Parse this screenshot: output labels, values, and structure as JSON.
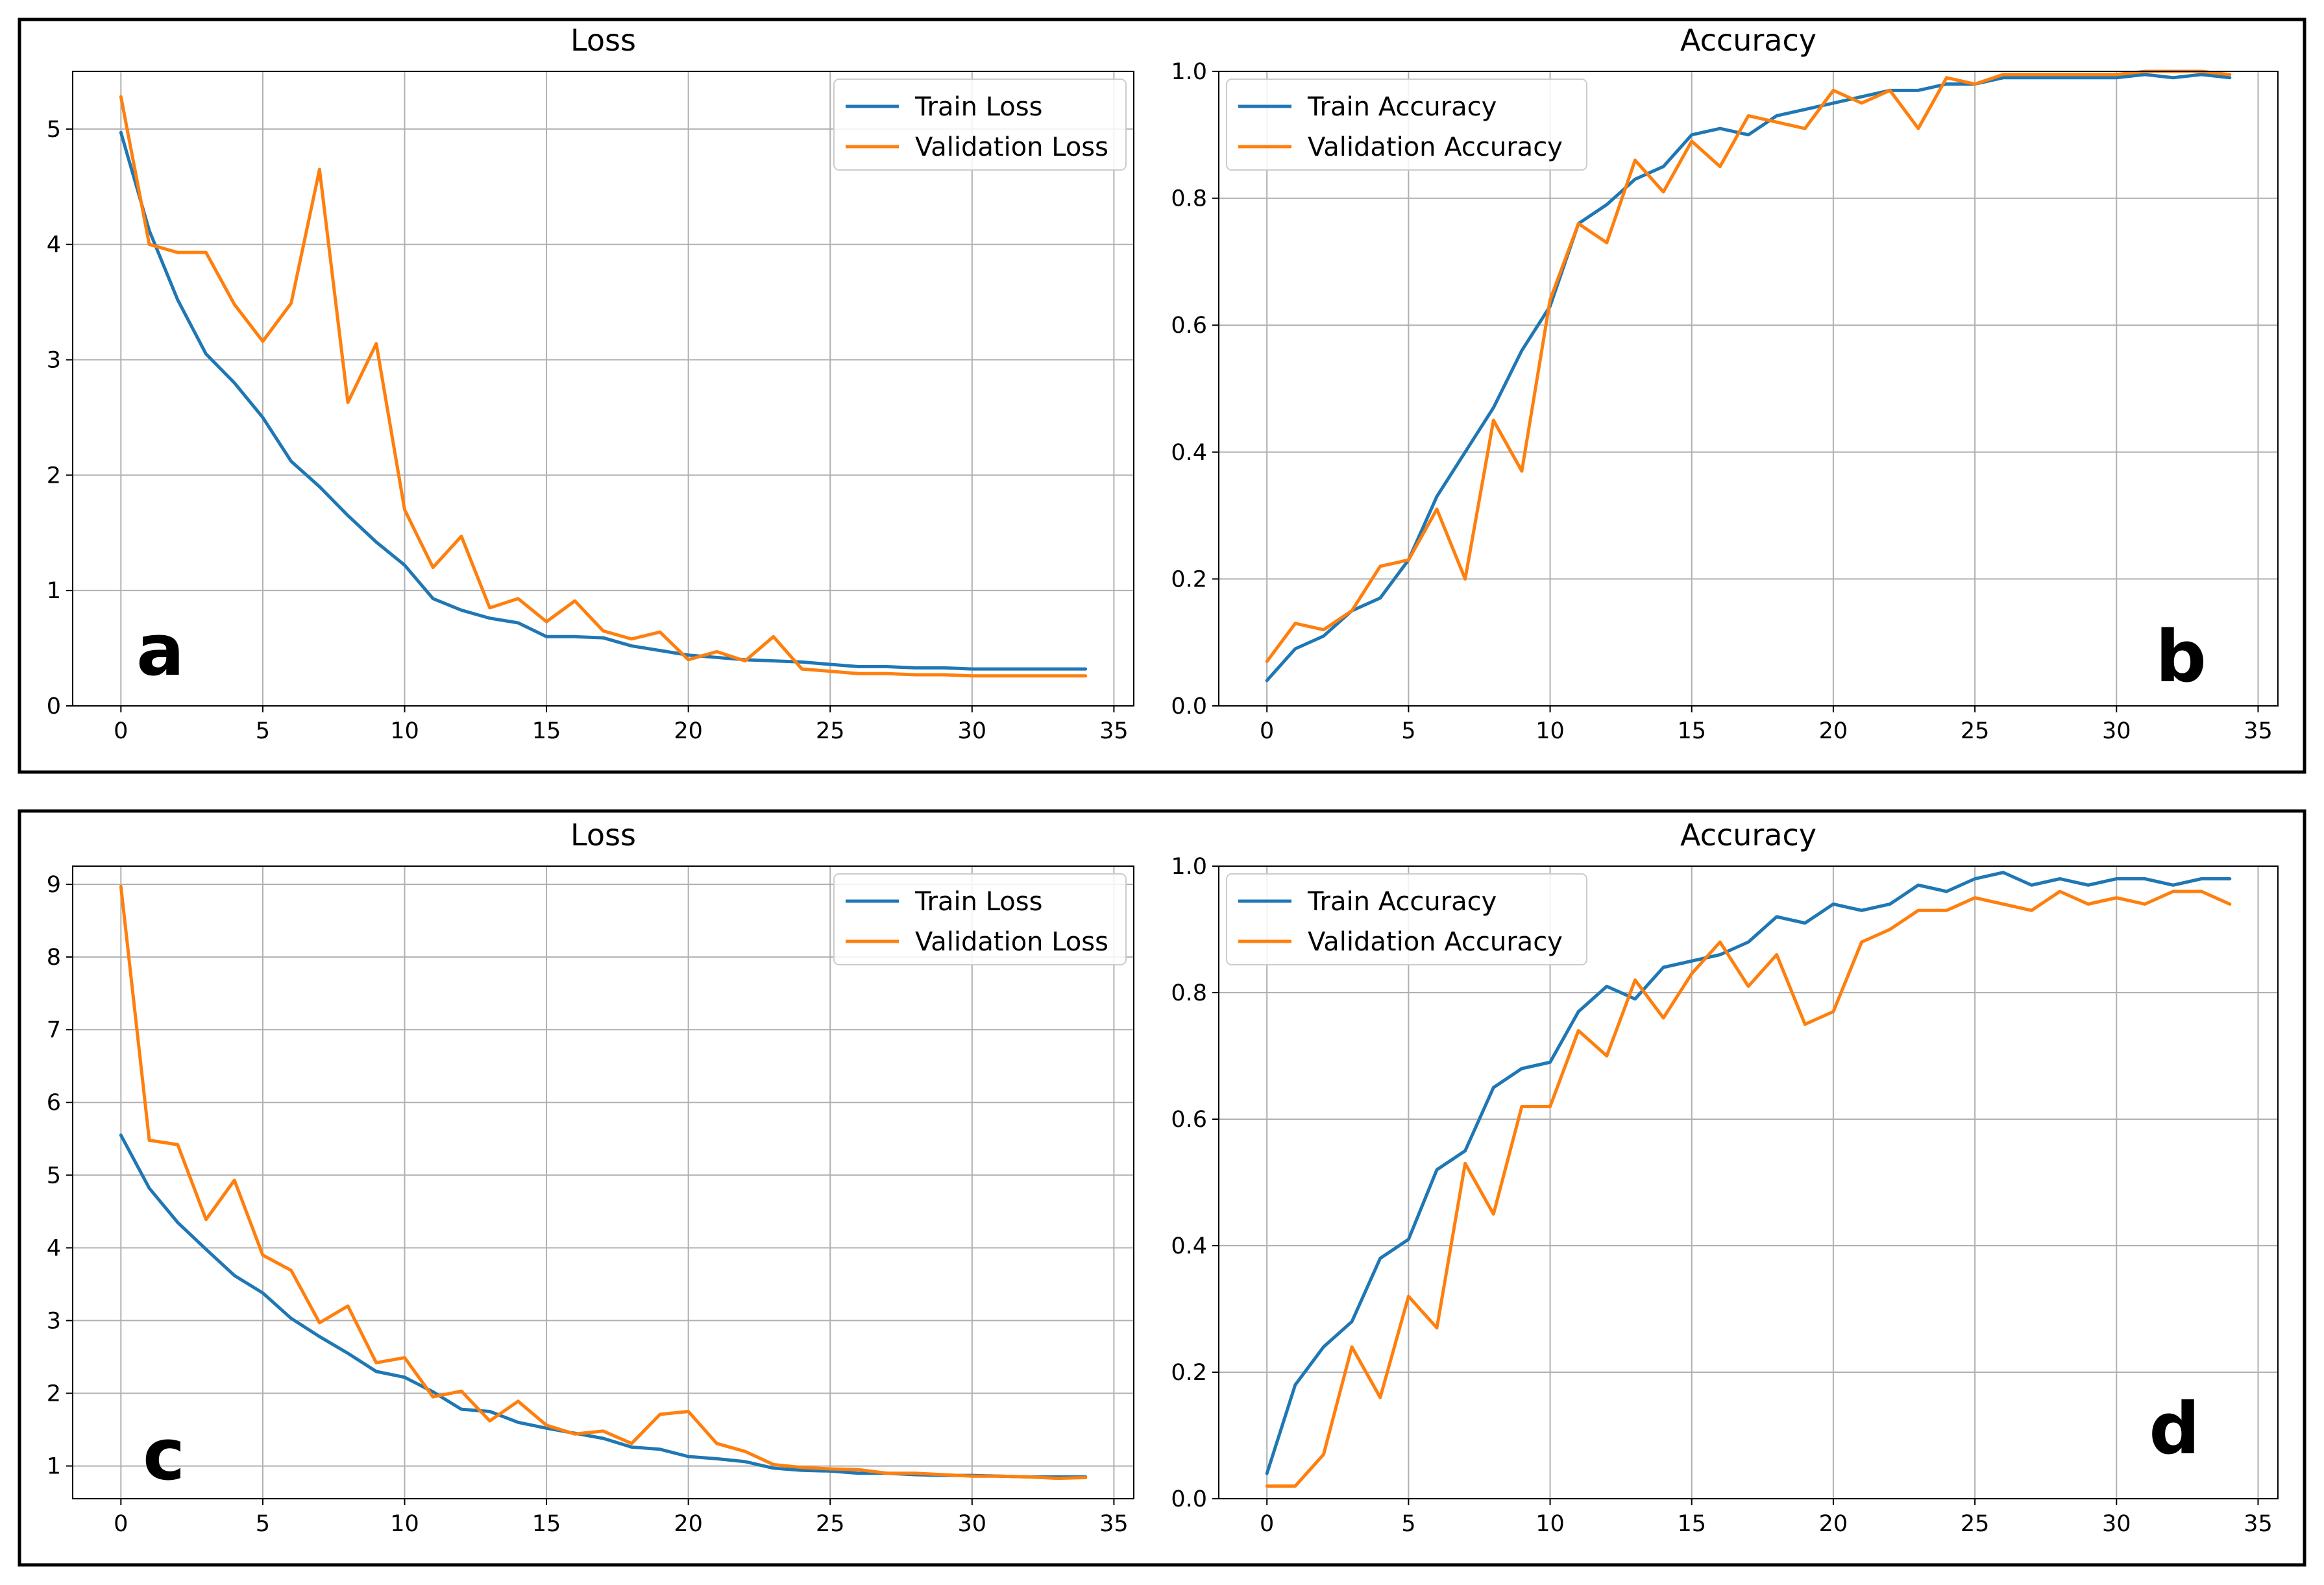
{
  "colors": {
    "train": "#1f77b4",
    "validation": "#ff7f0e",
    "grid": "#b0b0b0"
  },
  "chart_data": [
    {
      "id": "a",
      "type": "line",
      "title": "Loss",
      "panel_label": "a",
      "xlabel": "",
      "ylabel": "",
      "xlim": [
        -1.7,
        35.7
      ],
      "ylim": [
        0,
        5.5
      ],
      "xticks": [
        0,
        5,
        10,
        15,
        20,
        25,
        30,
        35
      ],
      "yticks": [
        0,
        1,
        2,
        3,
        4,
        5
      ],
      "ytick_labels": [
        "0",
        "1",
        "2",
        "3",
        "4",
        "5"
      ],
      "grid": true,
      "legend_position": "top-right",
      "x": [
        0,
        1,
        2,
        3,
        4,
        5,
        6,
        7,
        8,
        9,
        10,
        11,
        12,
        13,
        14,
        15,
        16,
        17,
        18,
        19,
        20,
        21,
        22,
        23,
        24,
        25,
        26,
        27,
        28,
        29,
        30,
        31,
        32,
        33,
        34
      ],
      "series": [
        {
          "name": "Train Loss",
          "color": "#1f77b4",
          "values": [
            4.97,
            4.12,
            3.52,
            3.05,
            2.8,
            2.5,
            2.12,
            1.9,
            1.65,
            1.42,
            1.22,
            0.93,
            0.83,
            0.76,
            0.72,
            0.6,
            0.6,
            0.59,
            0.52,
            0.48,
            0.44,
            0.42,
            0.4,
            0.39,
            0.38,
            0.36,
            0.34,
            0.34,
            0.33,
            0.33,
            0.32,
            0.32,
            0.32,
            0.32,
            0.32
          ]
        },
        {
          "name": "Validation Loss",
          "color": "#ff7f0e",
          "values": [
            5.28,
            4.0,
            3.93,
            3.93,
            3.48,
            3.16,
            3.49,
            4.65,
            2.63,
            3.14,
            1.7,
            1.2,
            1.47,
            0.85,
            0.93,
            0.73,
            0.91,
            0.65,
            0.58,
            0.64,
            0.4,
            0.47,
            0.39,
            0.6,
            0.32,
            0.3,
            0.28,
            0.28,
            0.27,
            0.27,
            0.26,
            0.26,
            0.26,
            0.26,
            0.26
          ]
        }
      ]
    },
    {
      "id": "b",
      "type": "line",
      "title": "Accuracy",
      "panel_label": "b",
      "xlabel": "",
      "ylabel": "",
      "xlim": [
        -1.7,
        35.7
      ],
      "ylim": [
        0,
        1.0
      ],
      "xticks": [
        0,
        5,
        10,
        15,
        20,
        25,
        30,
        35
      ],
      "yticks": [
        0,
        0.2,
        0.4,
        0.6,
        0.8,
        1.0
      ],
      "ytick_labels": [
        "0.0",
        "0.2",
        "0.4",
        "0.6",
        "0.8",
        "1.0"
      ],
      "grid": true,
      "legend_position": "top-left",
      "x": [
        0,
        1,
        2,
        3,
        4,
        5,
        6,
        7,
        8,
        9,
        10,
        11,
        12,
        13,
        14,
        15,
        16,
        17,
        18,
        19,
        20,
        21,
        22,
        23,
        24,
        25,
        26,
        27,
        28,
        29,
        30,
        31,
        32,
        33,
        34
      ],
      "series": [
        {
          "name": "Train Accuracy",
          "color": "#1f77b4",
          "values": [
            0.04,
            0.09,
            0.11,
            0.15,
            0.17,
            0.23,
            0.33,
            0.4,
            0.47,
            0.56,
            0.63,
            0.76,
            0.79,
            0.83,
            0.85,
            0.9,
            0.91,
            0.9,
            0.93,
            0.94,
            0.95,
            0.96,
            0.97,
            0.97,
            0.98,
            0.98,
            0.99,
            0.99,
            0.99,
            0.99,
            0.99,
            0.995,
            0.99,
            0.995,
            0.99
          ]
        },
        {
          "name": "Validation Accuracy",
          "color": "#ff7f0e",
          "values": [
            0.07,
            0.13,
            0.12,
            0.15,
            0.22,
            0.23,
            0.31,
            0.2,
            0.45,
            0.37,
            0.64,
            0.76,
            0.73,
            0.86,
            0.81,
            0.89,
            0.85,
            0.93,
            0.92,
            0.91,
            0.97,
            0.95,
            0.97,
            0.91,
            0.99,
            0.98,
            0.995,
            0.995,
            0.995,
            0.995,
            0.995,
            1.0,
            1.0,
            1.0,
            0.995
          ]
        }
      ]
    },
    {
      "id": "c",
      "type": "line",
      "title": "Loss",
      "panel_label": "c",
      "xlabel": "",
      "ylabel": "",
      "xlim": [
        -1.7,
        35.7
      ],
      "ylim": [
        0.55,
        9.25
      ],
      "xticks": [
        0,
        5,
        10,
        15,
        20,
        25,
        30,
        35
      ],
      "yticks": [
        1,
        2,
        3,
        4,
        5,
        6,
        7,
        8,
        9
      ],
      "ytick_labels": [
        "1",
        "2",
        "3",
        "4",
        "5",
        "6",
        "7",
        "8",
        "9"
      ],
      "grid": true,
      "legend_position": "top-right",
      "x": [
        0,
        1,
        2,
        3,
        4,
        5,
        6,
        7,
        8,
        9,
        10,
        11,
        12,
        13,
        14,
        15,
        16,
        17,
        18,
        19,
        20,
        21,
        22,
        23,
        24,
        25,
        26,
        27,
        28,
        29,
        30,
        31,
        32,
        33,
        34
      ],
      "series": [
        {
          "name": "Train Loss",
          "color": "#1f77b4",
          "values": [
            5.55,
            4.82,
            4.35,
            3.98,
            3.62,
            3.38,
            3.03,
            2.78,
            2.55,
            2.3,
            2.22,
            2.02,
            1.78,
            1.75,
            1.6,
            1.52,
            1.45,
            1.38,
            1.26,
            1.23,
            1.13,
            1.1,
            1.06,
            0.97,
            0.94,
            0.93,
            0.9,
            0.9,
            0.88,
            0.87,
            0.87,
            0.86,
            0.85,
            0.85,
            0.85
          ]
        },
        {
          "name": "Validation Loss",
          "color": "#ff7f0e",
          "values": [
            8.97,
            5.48,
            5.42,
            4.39,
            4.93,
            3.9,
            3.69,
            2.97,
            3.2,
            2.42,
            2.49,
            1.95,
            2.03,
            1.62,
            1.89,
            1.56,
            1.44,
            1.48,
            1.31,
            1.71,
            1.75,
            1.31,
            1.2,
            1.02,
            0.98,
            0.96,
            0.95,
            0.9,
            0.9,
            0.88,
            0.86,
            0.86,
            0.85,
            0.83,
            0.84
          ]
        }
      ]
    },
    {
      "id": "d",
      "type": "line",
      "title": "Accuracy",
      "panel_label": "d",
      "xlabel": "",
      "ylabel": "",
      "xlim": [
        -1.7,
        35.7
      ],
      "ylim": [
        0,
        1.0
      ],
      "xticks": [
        0,
        5,
        10,
        15,
        20,
        25,
        30,
        35
      ],
      "yticks": [
        0,
        0.2,
        0.4,
        0.6,
        0.8,
        1.0
      ],
      "ytick_labels": [
        "0.0",
        "0.2",
        "0.4",
        "0.6",
        "0.8",
        "1.0"
      ],
      "grid": true,
      "legend_position": "top-left",
      "x": [
        0,
        1,
        2,
        3,
        4,
        5,
        6,
        7,
        8,
        9,
        10,
        11,
        12,
        13,
        14,
        15,
        16,
        17,
        18,
        19,
        20,
        21,
        22,
        23,
        24,
        25,
        26,
        27,
        28,
        29,
        30,
        31,
        32,
        33,
        34
      ],
      "series": [
        {
          "name": "Train Accuracy",
          "color": "#1f77b4",
          "values": [
            0.04,
            0.18,
            0.24,
            0.28,
            0.38,
            0.41,
            0.52,
            0.55,
            0.65,
            0.68,
            0.69,
            0.77,
            0.81,
            0.79,
            0.84,
            0.85,
            0.86,
            0.88,
            0.92,
            0.91,
            0.94,
            0.93,
            0.94,
            0.97,
            0.96,
            0.98,
            0.99,
            0.97,
            0.98,
            0.97,
            0.98,
            0.98,
            0.97,
            0.98,
            0.98
          ]
        },
        {
          "name": "Validation Accuracy",
          "color": "#ff7f0e",
          "values": [
            0.02,
            0.02,
            0.07,
            0.24,
            0.16,
            0.32,
            0.27,
            0.53,
            0.45,
            0.62,
            0.62,
            0.74,
            0.7,
            0.82,
            0.76,
            0.83,
            0.88,
            0.81,
            0.86,
            0.75,
            0.77,
            0.88,
            0.9,
            0.93,
            0.93,
            0.95,
            0.94,
            0.93,
            0.96,
            0.94,
            0.95,
            0.94,
            0.96,
            0.96,
            0.94
          ]
        }
      ]
    }
  ]
}
